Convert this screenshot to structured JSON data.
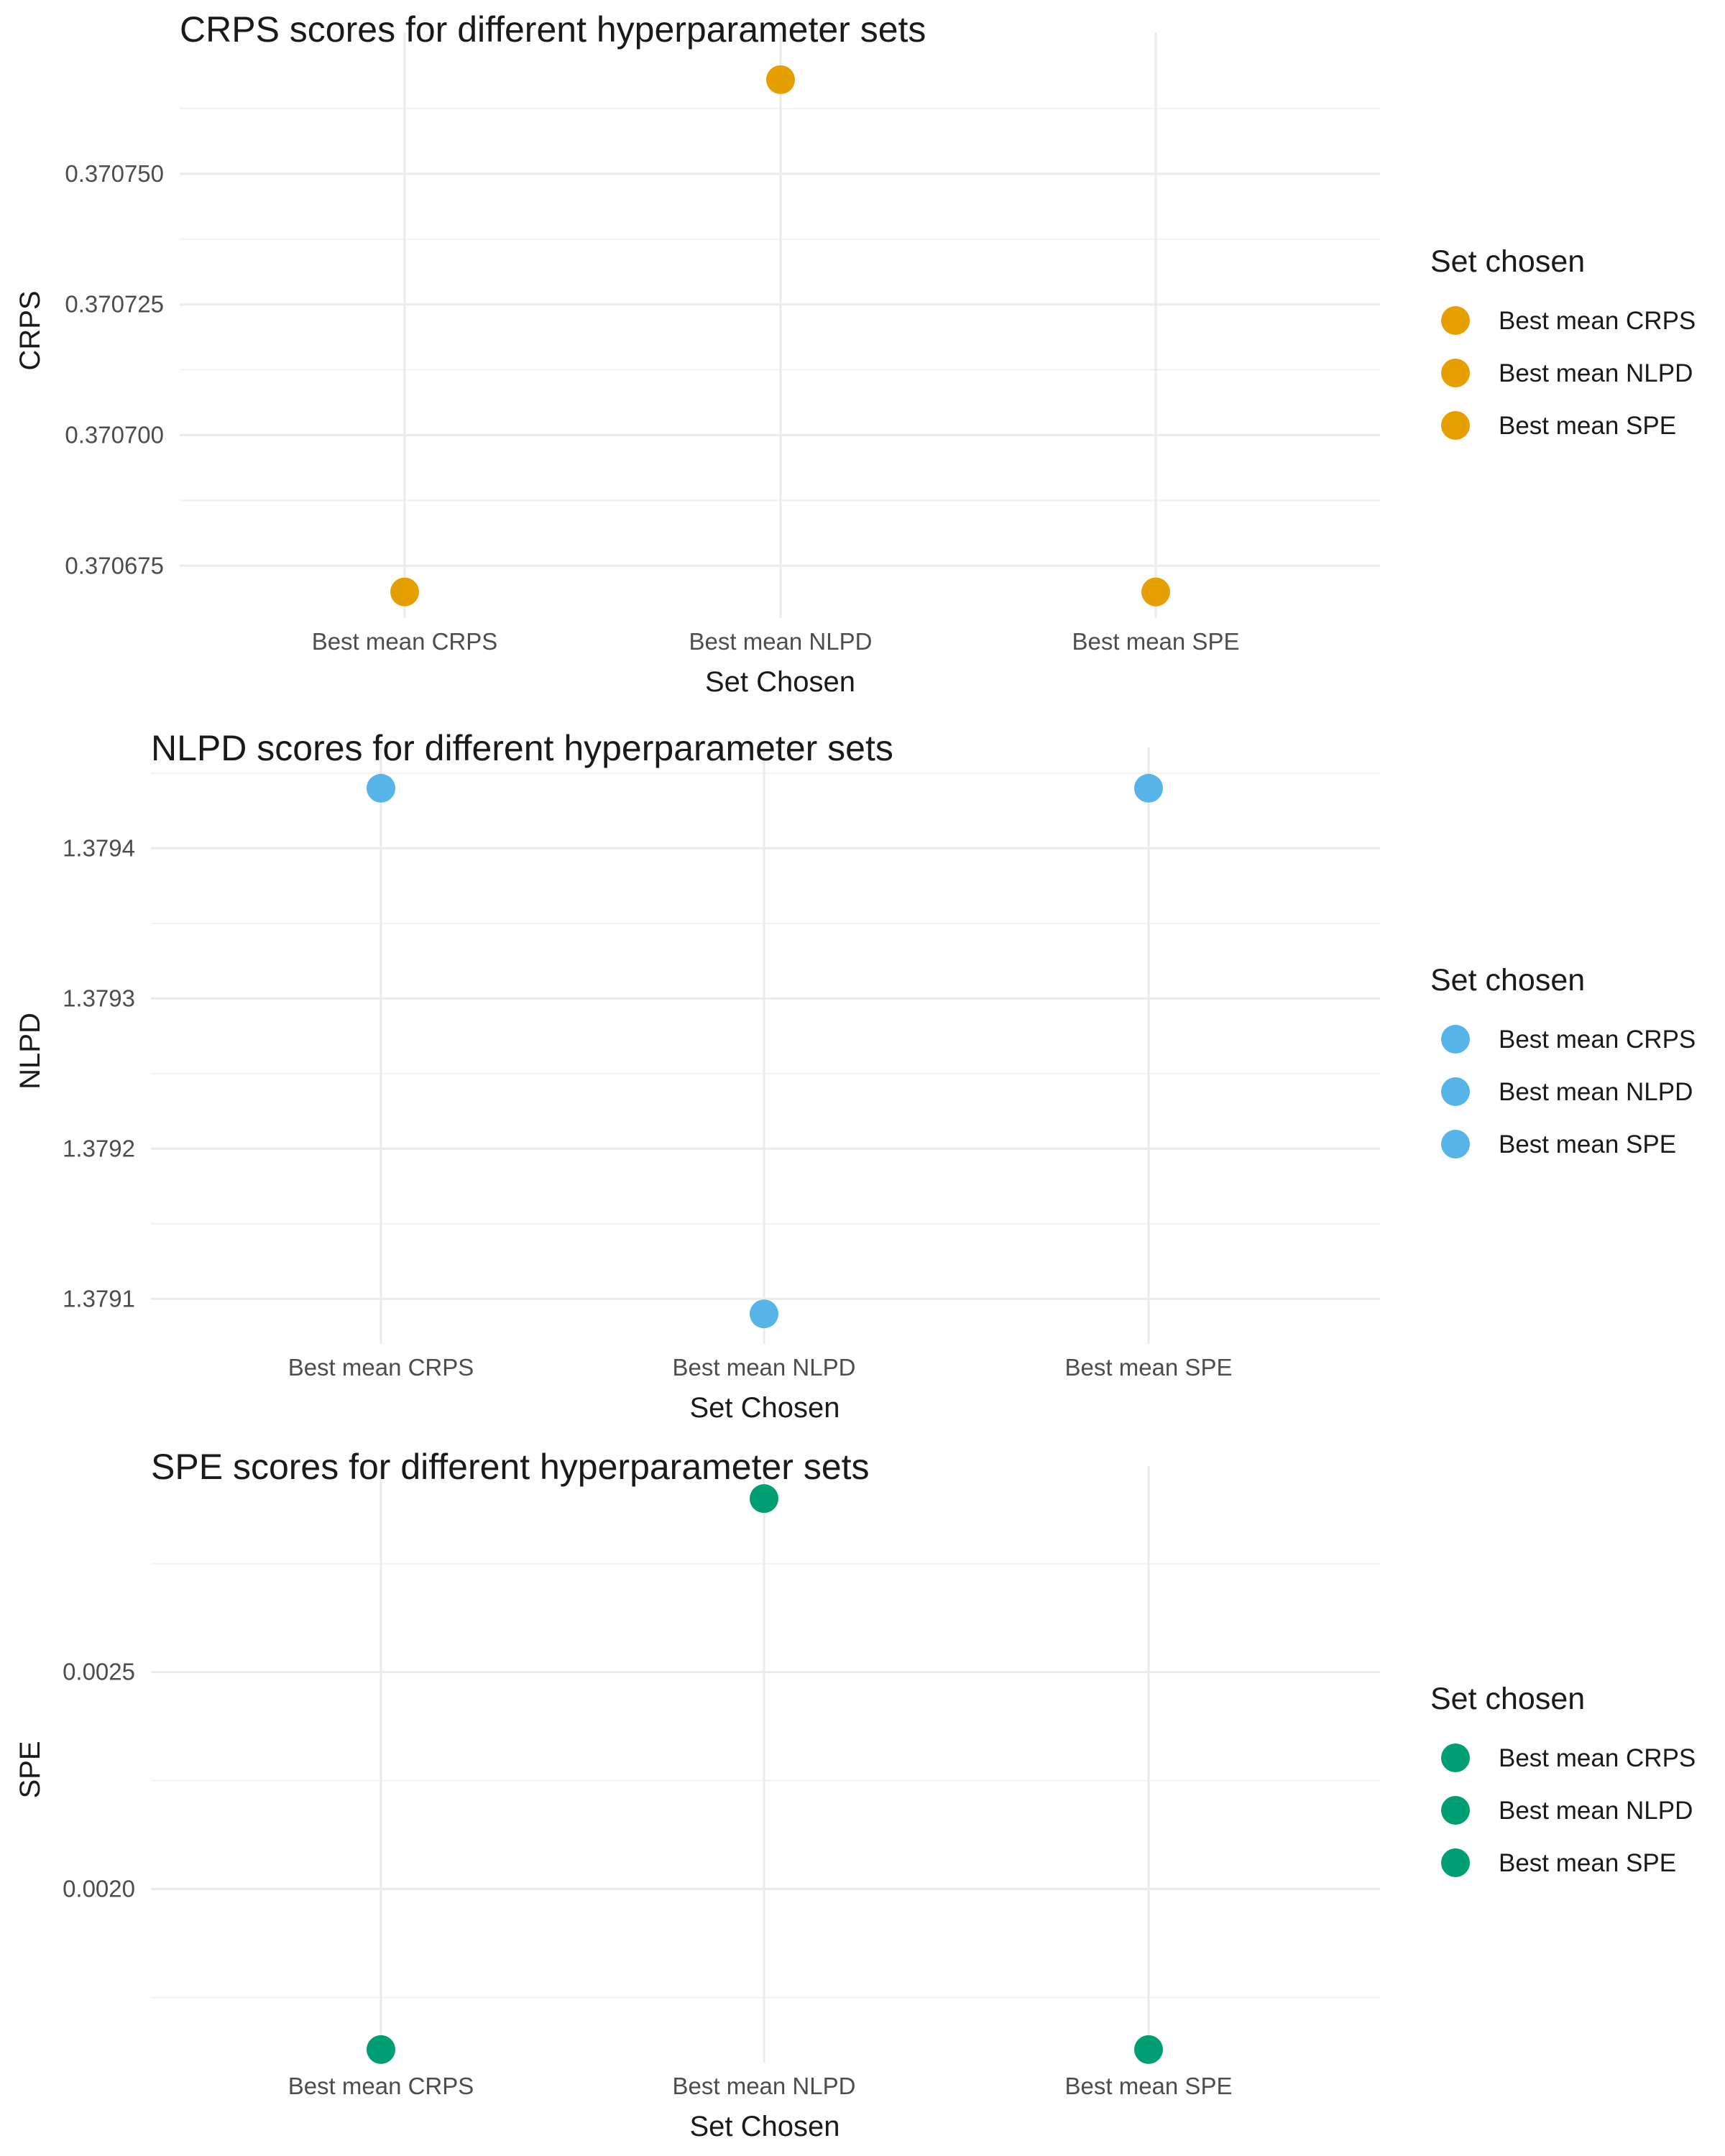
{
  "chart_data": [
    {
      "type": "scatter",
      "title": "CRPS scores for different hyperparameter sets",
      "xlabel": "Set Chosen",
      "ylabel": "CRPS",
      "categories": [
        "Best mean CRPS",
        "Best mean NLPD",
        "Best mean SPE"
      ],
      "values": [
        0.37067,
        0.370768,
        0.37067
      ],
      "yticks": [
        "0.370675",
        "0.370700",
        "0.370725",
        "0.370750"
      ],
      "ylim": [
        0.370665,
        0.370775
      ],
      "color": "#E69F00",
      "legend": {
        "title": "Set chosen",
        "placement": "right",
        "entries": [
          "Best mean CRPS",
          "Best mean NLPD",
          "Best mean SPE"
        ]
      },
      "grid": true
    },
    {
      "type": "scatter",
      "title": "NLPD scores for different hyperparameter sets",
      "xlabel": "Set Chosen",
      "ylabel": "NLPD",
      "categories": [
        "Best mean CRPS",
        "Best mean NLPD",
        "Best mean SPE"
      ],
      "values": [
        1.37944,
        1.37909,
        1.37944
      ],
      "yticks": [
        "1.3791",
        "1.3792",
        "1.3793",
        "1.3794"
      ],
      "ylim": [
        1.37907,
        1.37946
      ],
      "color": "#56B4E9",
      "legend": {
        "title": "Set chosen",
        "placement": "right",
        "entries": [
          "Best mean CRPS",
          "Best mean NLPD",
          "Best mean SPE"
        ]
      },
      "grid": true
    },
    {
      "type": "scatter",
      "title": "SPE scores for different hyperparameter sets",
      "xlabel": "Set Chosen",
      "ylabel": "SPE",
      "categories": [
        "Best mean CRPS",
        "Best mean NLPD",
        "Best mean SPE"
      ],
      "values": [
        0.00163,
        0.0029,
        0.00163
      ],
      "yticks": [
        "0.0020",
        "0.0025"
      ],
      "ylim": [
        0.0016,
        0.00295
      ],
      "color": "#009E73",
      "legend": {
        "title": "Set chosen",
        "placement": "right",
        "entries": [
          "Best mean CRPS",
          "Best mean NLPD",
          "Best mean SPE"
        ]
      },
      "grid": true
    }
  ]
}
